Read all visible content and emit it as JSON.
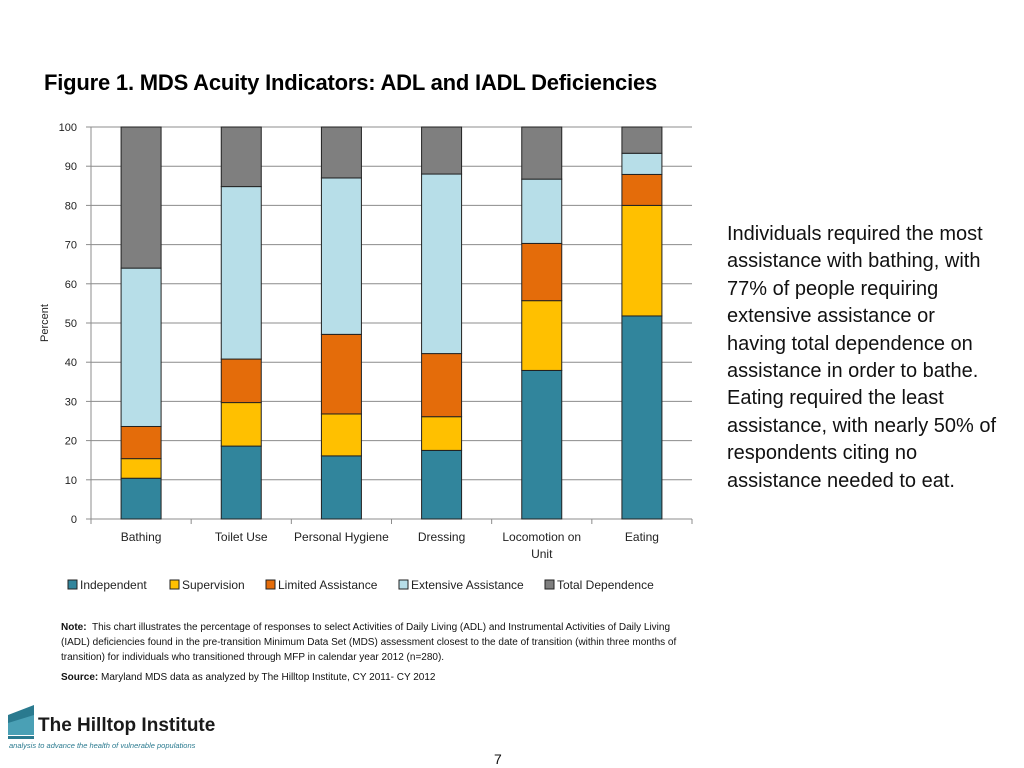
{
  "title": "Figure 1. MDS Acuity Indicators: ADL and IADL Deficiencies",
  "side_text": "Individuals required the most assistance with bathing, with 77% of people requiring extensive assistance or having total dependence on assistance in order to bathe. Eating required the least assistance, with nearly 50% of respondents citing no assistance needed to eat.",
  "note": {
    "label": "Note",
    "text": "This chart illustrates  the percentage of responses to select Activities of Daily Living (ADL) and  Instrumental Activities of Daily Living (IADL) deficiencies found  in the pre-transition Minimum Data Set (MDS) assessment closest to the date of transition (within three months of transition) for individuals who transitioned through MFP in calendar year 2012 (n=280)."
  },
  "source": {
    "label": "Source",
    "text": "Maryland MDS data as analyzed by The Hilltop Institute, CY 2011- CY 2012"
  },
  "logo": {
    "name": "The Hilltop Institute",
    "tagline": "analysis to advance the health of vulnerable populations"
  },
  "page_number": "7",
  "chart_data": {
    "type": "bar",
    "stacked": true,
    "title": "",
    "xlabel": "",
    "ylabel": "Percent",
    "ylim": [
      0,
      100
    ],
    "yticks": [
      0,
      10,
      20,
      30,
      40,
      50,
      60,
      70,
      80,
      90,
      100
    ],
    "grid": true,
    "legend_position": "bottom",
    "categories": [
      "Bathing",
      "Toilet Use",
      "Personal Hygiene",
      "Dressing",
      "Locomotion on Unit",
      "Eating"
    ],
    "series": [
      {
        "name": "Independent",
        "color": "#31859c",
        "values": [
          10.4,
          18.6,
          16.1,
          17.5,
          37.9,
          51.8
        ]
      },
      {
        "name": "Supervision",
        "color": "#ffc000",
        "values": [
          5.0,
          11.1,
          10.7,
          8.6,
          17.8,
          28.2
        ]
      },
      {
        "name": "Limited Assistance",
        "color": "#e46c0a",
        "values": [
          8.2,
          11.1,
          20.3,
          16.1,
          14.6,
          7.9
        ]
      },
      {
        "name": "Extensive Assistance",
        "color": "#b7dee8",
        "values": [
          40.4,
          44.0,
          39.9,
          45.8,
          16.4,
          5.4
        ]
      },
      {
        "name": "Total Dependence",
        "color": "#7f7f7f",
        "values": [
          36.0,
          15.2,
          13.0,
          12.0,
          13.3,
          6.7
        ]
      }
    ]
  }
}
